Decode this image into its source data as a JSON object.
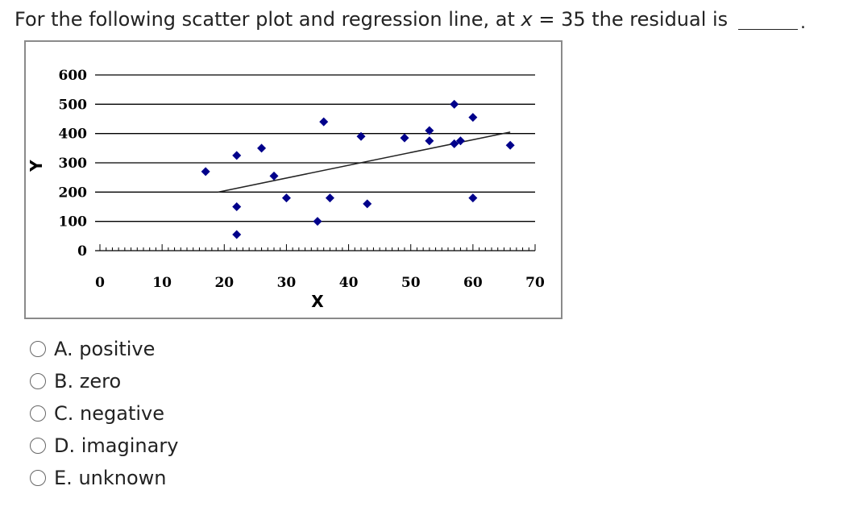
{
  "question": {
    "prefix": "For the following scatter plot and regression line, at ",
    "variable": "x",
    "suffix": " = 35 the residual is",
    "blank_end": "."
  },
  "options": [
    {
      "letter": "A.",
      "text": "positive"
    },
    {
      "letter": "B.",
      "text": "zero"
    },
    {
      "letter": "C.",
      "text": "negative"
    },
    {
      "letter": "D.",
      "text": "imaginary"
    },
    {
      "letter": "E.",
      "text": "unknown"
    }
  ],
  "chart_data": {
    "type": "scatter",
    "xlabel": "X",
    "ylabel": "Y",
    "xlim": [
      0,
      70
    ],
    "ylim": [
      0,
      600
    ],
    "xticks": [
      0,
      10,
      20,
      30,
      40,
      50,
      60,
      70
    ],
    "yticks": [
      0,
      100,
      200,
      300,
      400,
      500,
      600
    ],
    "grid_horizontal": true,
    "marker_color": "#00008b",
    "line_color": "#222222",
    "points": [
      {
        "x": 17,
        "y": 270
      },
      {
        "x": 22,
        "y": 325
      },
      {
        "x": 22,
        "y": 150
      },
      {
        "x": 22,
        "y": 55
      },
      {
        "x": 26,
        "y": 350
      },
      {
        "x": 28,
        "y": 255
      },
      {
        "x": 30,
        "y": 180
      },
      {
        "x": 35,
        "y": 100
      },
      {
        "x": 36,
        "y": 440
      },
      {
        "x": 37,
        "y": 180
      },
      {
        "x": 42,
        "y": 390
      },
      {
        "x": 43,
        "y": 160
      },
      {
        "x": 49,
        "y": 385
      },
      {
        "x": 53,
        "y": 410
      },
      {
        "x": 53,
        "y": 375
      },
      {
        "x": 57,
        "y": 500
      },
      {
        "x": 57,
        "y": 365
      },
      {
        "x": 58,
        "y": 375
      },
      {
        "x": 60,
        "y": 455
      },
      {
        "x": 60,
        "y": 180
      },
      {
        "x": 66,
        "y": 360
      }
    ],
    "regression_line": {
      "x_start": 19,
      "y_start": 200,
      "x_end": 66,
      "y_end": 405
    }
  }
}
